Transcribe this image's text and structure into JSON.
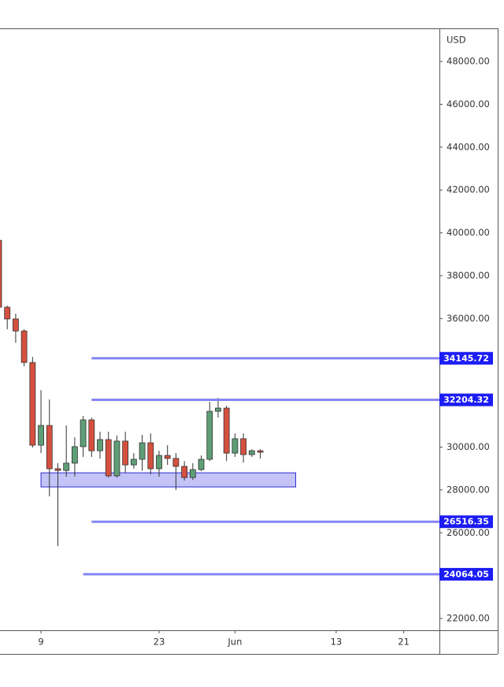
{
  "chart_data": {
    "type": "candlestick",
    "currency": "USD",
    "x": [
      4,
      5,
      6,
      7,
      8,
      9,
      10,
      11,
      12,
      13,
      14,
      15,
      16,
      17,
      18,
      19,
      20,
      21,
      22,
      23,
      24,
      25,
      26,
      27,
      28,
      29,
      30,
      31,
      32,
      33,
      34,
      35
    ],
    "open": [
      39650,
      36530,
      35980,
      35420,
      33950,
      30090,
      31010,
      28990,
      28910,
      29250,
      30020,
      31270,
      29830,
      30350,
      28660,
      30280,
      29170,
      29430,
      30200,
      28990,
      29610,
      29470,
      29100,
      28580,
      28950,
      29430,
      31670,
      31820,
      29720,
      30390,
      29650,
      29830
    ],
    "high": [
      39700,
      36600,
      36230,
      35500,
      34210,
      32660,
      32220,
      29250,
      31010,
      30460,
      31450,
      31380,
      30720,
      30720,
      30540,
      30720,
      29720,
      30570,
      30640,
      29830,
      30090,
      29720,
      29350,
      29250,
      29610,
      32110,
      32300,
      31930,
      30640,
      30640,
      29900,
      29900
    ],
    "low": [
      36400,
      35500,
      34870,
      33770,
      29980,
      29720,
      27700,
      25380,
      28620,
      28620,
      29540,
      29540,
      29470,
      28580,
      28580,
      28800,
      28990,
      28900,
      28730,
      28620,
      29170,
      27990,
      28440,
      28470,
      28880,
      29350,
      31380,
      29350,
      29540,
      29280,
      29540,
      29470
    ],
    "close": [
      36530,
      35980,
      35420,
      33950,
      30090,
      31010,
      28990,
      28910,
      29250,
      30020,
      31270,
      29830,
      30350,
      28660,
      30280,
      29170,
      29430,
      30200,
      28990,
      29610,
      29470,
      29100,
      28580,
      28950,
      29430,
      31670,
      31820,
      29720,
      30390,
      29650,
      29830,
      29760
    ],
    "up_color": "#5e9e76",
    "down_color": "#d5503f",
    "lines": [
      {
        "value": 34145.72,
        "start": 15
      },
      {
        "value": 32204.32,
        "start": 15
      },
      {
        "value": 26516.35,
        "start": 15
      },
      {
        "value": 24064.05,
        "start": 14
      }
    ],
    "line_color": "#8585f2",
    "label_color": "#1c1cf5",
    "zone": {
      "x": [
        9,
        39.2
      ],
      "y": [
        28140,
        28800
      ],
      "color": "#c3c3f7"
    },
    "xlim": [
      4.14,
      56.24
    ],
    "xticks": [
      9,
      23,
      {
        "value": 32,
        "label": "Jun"
      },
      {
        "value": 44,
        "label": "13"
      },
      {
        "value": 52,
        "label": "21"
      }
    ],
    "ylim": [
      21450,
      49545
    ],
    "yticks": [
      {
        "value": 22000,
        "label": "22000.00"
      },
      {
        "value": 26000,
        "label": "26000.00"
      },
      {
        "value": 28000,
        "label": "28000.00"
      },
      {
        "value": 30000,
        "label": "30000.00"
      },
      {
        "value": 36000,
        "label": "36000.00"
      },
      {
        "value": 38000,
        "label": "38000.00"
      },
      {
        "value": 40000,
        "label": "40000.00"
      },
      {
        "value": 42000,
        "label": "42000.00"
      },
      {
        "value": 44000,
        "label": "44000.00"
      },
      {
        "value": 46000,
        "label": "46000.00"
      },
      {
        "value": 48000,
        "label": "48000.00"
      }
    ]
  }
}
